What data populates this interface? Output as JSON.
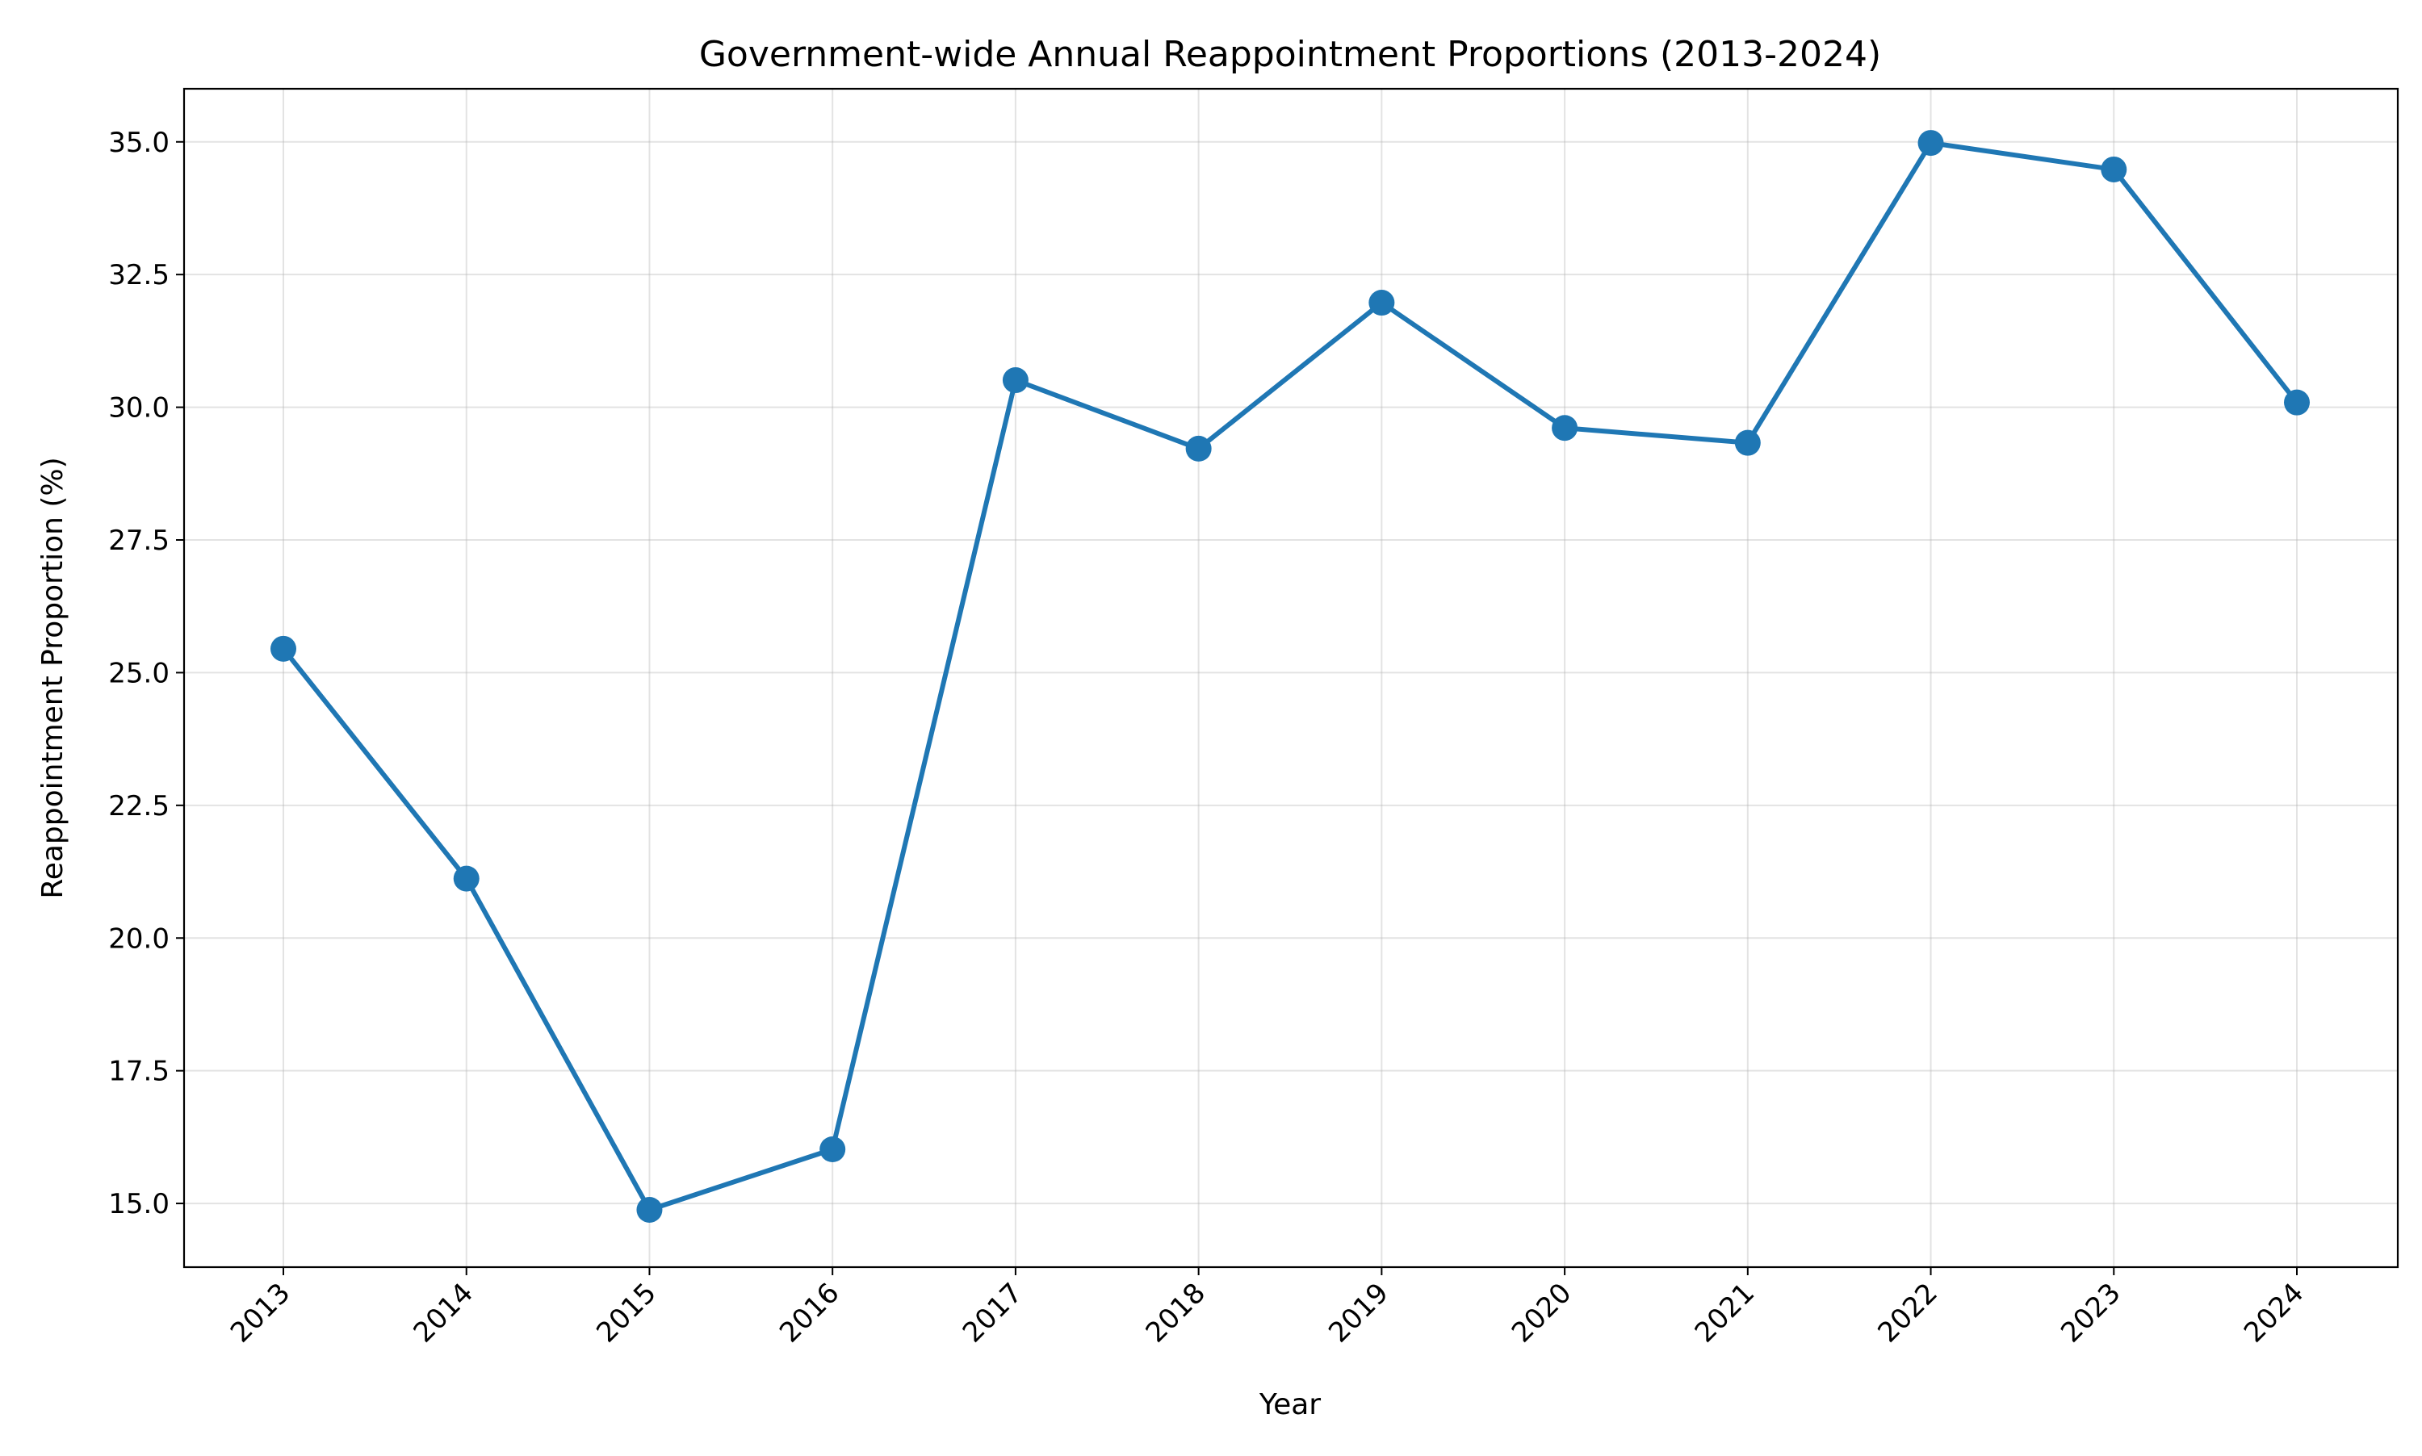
{
  "chart_data": {
    "type": "line",
    "title": "Government-wide Annual Reappointment Proportions (2013-2024)",
    "xlabel": "Year",
    "ylabel": "Reappointment Proportion (%)",
    "categories": [
      "2013",
      "2014",
      "2015",
      "2016",
      "2017",
      "2018",
      "2019",
      "2020",
      "2021",
      "2022",
      "2023",
      "2024"
    ],
    "series": [
      {
        "values": [
          25.45,
          21.12,
          14.88,
          16.02,
          30.51,
          29.22,
          31.97,
          29.61,
          29.33,
          34.98,
          34.48,
          30.09
        ],
        "color": "#1f77b4"
      }
    ],
    "y_ticks": [
      "15.0",
      "17.5",
      "20.0",
      "22.5",
      "25.0",
      "27.5",
      "30.0",
      "32.5",
      "35.0"
    ],
    "ylim": [
      13.8,
      36.0
    ],
    "grid": true,
    "legend": "none",
    "x_tick_rotation_deg": 45
  }
}
